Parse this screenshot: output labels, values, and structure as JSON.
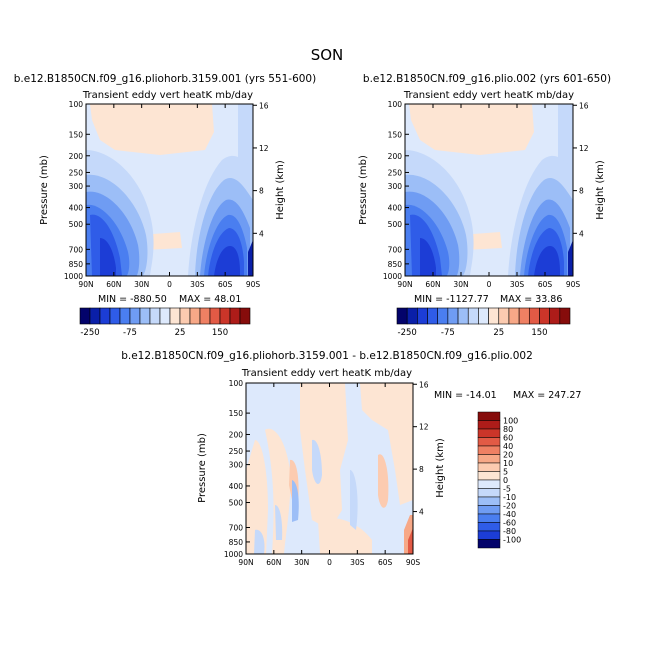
{
  "figure": {
    "season": "SON"
  },
  "palette": {
    "fill_colors": [
      "#03036b",
      "#0a1fa8",
      "#1c3dd6",
      "#2f5ce8",
      "#4a7ef0",
      "#6f9cf3",
      "#9cbef7",
      "#c5d9fa",
      "#dde9fc",
      "#fde5d3",
      "#fccbb0",
      "#f7a887",
      "#ef8063",
      "#e25a45",
      "#cb3529",
      "#ad1c19",
      "#860c0b"
    ],
    "frame": "#000000"
  },
  "chart_data": [
    {
      "id": "panel_a",
      "type": "heatmap",
      "title": "b.e12.B1850CN.f09_g16.pliohorb.3159.001 (yrs 551-600)",
      "subtitle": "Transient eddy vert heatK mb/day",
      "ylabel": "Pressure (mb)",
      "ylabel_right": "Height (km)",
      "x_ticks": [
        "90N",
        "60N",
        "30N",
        "0",
        "30S",
        "60S",
        "90S"
      ],
      "y_ticks": [
        "100",
        "150",
        "200",
        "250",
        "300",
        "400",
        "500",
        "700",
        "850",
        "1000"
      ],
      "y_right_ticks": [
        "4",
        "8",
        "12",
        "16"
      ],
      "stats": {
        "min_label": "MIN = -880.50",
        "max_label": "MAX = 48.01"
      },
      "colorbar_ticks": [
        "-250",
        "-75",
        "25",
        "150"
      ]
    },
    {
      "id": "panel_b",
      "type": "heatmap",
      "title": "b.e12.B1850CN.f09_g16.plio.002 (yrs 601-650)",
      "subtitle": "Transient eddy vert heatK mb/day",
      "ylabel": "Pressure (mb)",
      "ylabel_right": "Height (km)",
      "x_ticks": [
        "90N",
        "60N",
        "30N",
        "0",
        "30S",
        "60S",
        "90S"
      ],
      "y_ticks": [
        "100",
        "150",
        "200",
        "250",
        "300",
        "400",
        "500",
        "700",
        "850",
        "1000"
      ],
      "y_right_ticks": [
        "4",
        "8",
        "12",
        "16"
      ],
      "stats": {
        "min_label": "MIN = -1127.77",
        "max_label": "MAX = 33.86"
      },
      "colorbar_ticks": [
        "-250",
        "-75",
        "25",
        "150"
      ]
    },
    {
      "id": "panel_diff",
      "type": "heatmap",
      "title": "b.e12.B1850CN.f09_g16.pliohorb.3159.001 - b.e12.B1850CN.f09_g16.plio.002",
      "subtitle": "Transient eddy vert heatK mb/day",
      "ylabel": "Pressure (mb)",
      "ylabel_right": "Height (km)",
      "x_ticks": [
        "90N",
        "60N",
        "30N",
        "0",
        "30S",
        "60S",
        "90S"
      ],
      "y_ticks": [
        "100",
        "150",
        "200",
        "250",
        "300",
        "400",
        "500",
        "700",
        "850",
        "1000"
      ],
      "y_right_ticks": [
        "4",
        "8",
        "12",
        "16"
      ],
      "stats": {
        "min_label": "MIN = -14.01",
        "max_label": "MAX = 247.27"
      },
      "colorbar_ticks": [
        "100",
        "80",
        "60",
        "40",
        "20",
        "10",
        "5",
        "0",
        "-5",
        "-10",
        "-20",
        "-40",
        "-60",
        "-80",
        "-100"
      ]
    }
  ]
}
